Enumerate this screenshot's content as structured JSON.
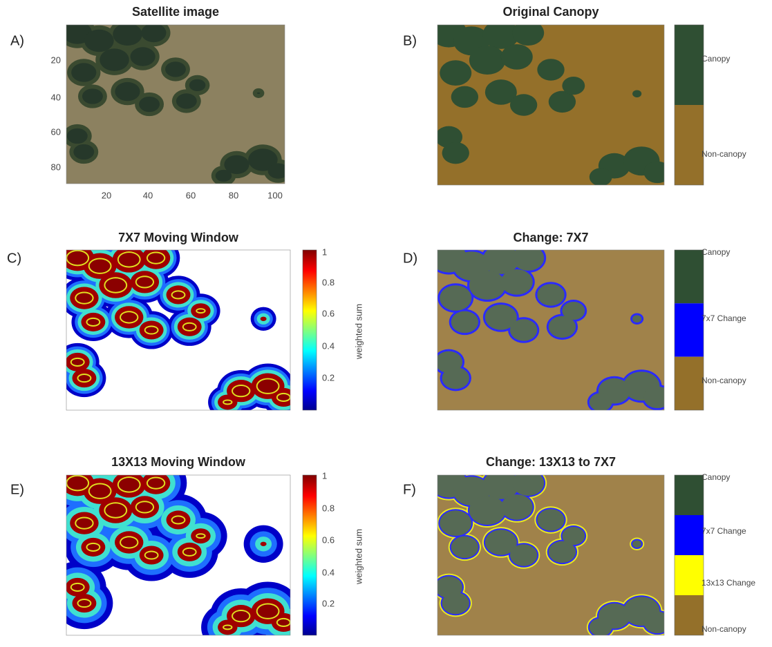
{
  "panels": [
    {
      "letter": "A)",
      "title": "Satellite image",
      "yticks": [
        "20",
        "40",
        "60",
        "80"
      ],
      "xticks": [
        "20",
        "40",
        "60",
        "80",
        "100"
      ]
    },
    {
      "letter": "B)",
      "title": "Original Canopy",
      "legend": [
        "Canopy",
        "Non-canopy"
      ]
    },
    {
      "letter": "C)",
      "title": "7X7 Moving Window",
      "colorbar_label": "weighted sum",
      "colorbar_ticks": [
        "1",
        "0.8",
        "0.6",
        "0.4",
        "0.2"
      ]
    },
    {
      "letter": "D)",
      "title": "Change: 7X7",
      "legend": [
        "Canopy",
        "7x7 Change",
        "Non-canopy"
      ]
    },
    {
      "letter": "E)",
      "title": "13X13 Moving Window",
      "colorbar_label": "weighted sum",
      "colorbar_ticks": [
        "1",
        "0.8",
        "0.6",
        "0.4",
        "0.2"
      ]
    },
    {
      "letter": "F)",
      "title": "Change: 13X13 to 7X7",
      "legend": [
        "Canopy",
        "7x7  Change",
        "13x13 Change",
        "Non-canopy"
      ]
    }
  ]
}
